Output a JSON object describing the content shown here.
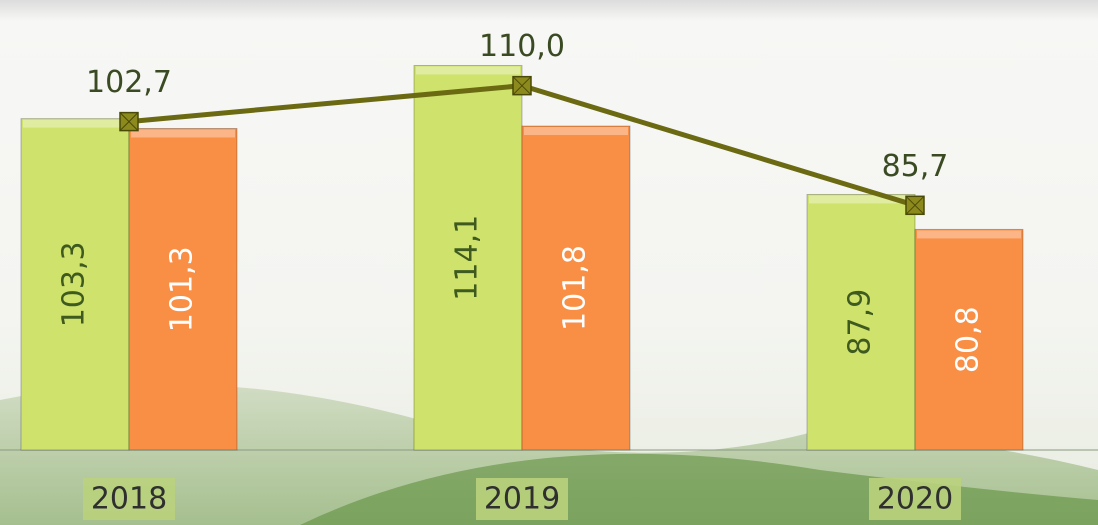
{
  "chart_data": {
    "type": "bar",
    "categories": [
      "2018",
      "2019",
      "2020"
    ],
    "ylim": [
      36,
      127.4
    ],
    "series": [
      {
        "color": "#cfe26c",
        "label_color": "#3f5a1e",
        "values": [
          103.3,
          114.1,
          87.9
        ],
        "value_labels": [
          "103,3",
          "114,1",
          "87,9"
        ]
      },
      {
        "color": "#f98e45",
        "label_color": "#ffffff",
        "values": [
          101.3,
          101.8,
          80.8
        ],
        "value_labels": [
          "101,3",
          "101,8",
          "80,8"
        ]
      },
      {
        "type": "line",
        "color": "#6b6a12",
        "label_color": "#3a4a22",
        "values": [
          102.7,
          110.0,
          85.7
        ],
        "value_labels": [
          "102,7",
          "110,0",
          "85,7"
        ]
      }
    ]
  }
}
